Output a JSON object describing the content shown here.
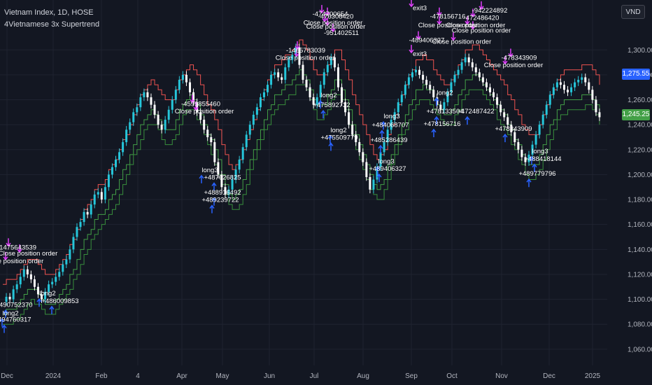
{
  "header": {
    "title": "Vietnam Index, 1D, HOSE",
    "indicator": "4Vietnamese 3x Supertrend",
    "currency": "VND"
  },
  "price_badges": {
    "upper": "1,275.55",
    "lower": "1,245.25"
  },
  "colors": {
    "background": "#131722",
    "up_candle": "#26c6da",
    "down_candle": "#ffffff",
    "supertrend_fast": "#ef5350",
    "supertrend_mid": "#43a047",
    "supertrend_slow": "#388e3c",
    "long_signal": "#2962ff",
    "exit_signal": "#e040fb",
    "grid": "#1f2330",
    "axis_text": "#b2b5be"
  },
  "chart_data": {
    "type": "line",
    "title": "Vietnam Index, 1D, HOSE",
    "xlabel": "",
    "ylabel": "",
    "ylim": [
      1047,
      1340
    ],
    "y_ticks": [
      "1,060.00",
      "1,080.00",
      "1,100.00",
      "1,120.00",
      "1,140.00",
      "1,160.00",
      "1,180.00",
      "1,200.00",
      "1,220.00",
      "1,240.00",
      "1,260.00",
      "1,280.00",
      "1,300.00"
    ],
    "x_ticks": [
      "Dec",
      "2024",
      "Feb",
      "4",
      "Apr",
      "May",
      "Jun",
      "Jul",
      "Aug",
      "Sep",
      "Oct",
      "Nov",
      "Dec",
      "2025"
    ],
    "series": [
      {
        "name": "Vietnam Index",
        "values": [
          1098,
          1102,
          1100,
          1108,
          1112,
          1118,
          1124,
          1120,
          1116,
          1110,
          1104,
          1100,
          1106,
          1112,
          1114,
          1118,
          1122,
          1128,
          1132,
          1140,
          1150,
          1158,
          1162,
          1170,
          1168,
          1176,
          1184,
          1186,
          1180,
          1190,
          1200,
          1206,
          1212,
          1218,
          1226,
          1236,
          1242,
          1250,
          1254,
          1262,
          1266,
          1262,
          1256,
          1248,
          1240,
          1236,
          1244,
          1252,
          1260,
          1268,
          1276,
          1280,
          1274,
          1266,
          1258,
          1250,
          1244,
          1236,
          1230,
          1226,
          1210,
          1200,
          1190,
          1184,
          1188,
          1196,
          1204,
          1212,
          1222,
          1232,
          1240,
          1248,
          1254,
          1262,
          1266,
          1272,
          1280,
          1282,
          1278,
          1276,
          1286,
          1292,
          1296,
          1302,
          1288,
          1276,
          1270,
          1262,
          1256,
          1262,
          1272,
          1282,
          1288,
          1294,
          1286,
          1270,
          1258,
          1250,
          1240,
          1232,
          1226,
          1218,
          1210,
          1198,
          1188,
          1196,
          1206,
          1218,
          1226,
          1236,
          1244,
          1250,
          1258,
          1264,
          1272,
          1278,
          1282,
          1284,
          1280,
          1276,
          1272,
          1268,
          1262,
          1256,
          1252,
          1258,
          1266,
          1274,
          1280,
          1284,
          1290,
          1294,
          1290,
          1286,
          1282,
          1278,
          1274,
          1270,
          1266,
          1262,
          1256,
          1250,
          1246,
          1240,
          1234,
          1226,
          1220,
          1214,
          1210,
          1216,
          1224,
          1232,
          1240,
          1248,
          1256,
          1264,
          1270,
          1274,
          1272,
          1268,
          1266,
          1270,
          1274,
          1276,
          1278,
          1274,
          1268,
          1260,
          1250,
          1246
        ]
      },
      {
        "name": "Supertrend fast",
        "values": []
      },
      {
        "name": "Supertrend mid",
        "values": []
      },
      {
        "name": "Supertrend slow",
        "values": []
      }
    ],
    "annotations": [
      {
        "text": "-1475643539",
        "x": 24,
        "y": 1140
      },
      {
        "text": "Close position order",
        "x": 40,
        "y": 1135
      },
      {
        "text": "Close position order",
        "x": 20,
        "y": 1129
      },
      {
        "text": "long2",
        "x": 68,
        "y": 1103
      },
      {
        "text": "+486009853",
        "x": 86,
        "y": 1097
      },
      {
        "text": "+490752370",
        "x": 20,
        "y": 1094
      },
      {
        "text": "long2",
        "x": 15,
        "y": 1087
      },
      {
        "text": "+494760317",
        "x": 18,
        "y": 1082
      },
      {
        "text": "-4599855460",
        "x": 287,
        "y": 1255
      },
      {
        "text": "Close position order",
        "x": 292,
        "y": 1249
      },
      {
        "text": "long3",
        "x": 300,
        "y": 1202
      },
      {
        "text": "+487626825",
        "x": 318,
        "y": 1196
      },
      {
        "text": "+488916492",
        "x": 318,
        "y": 1184
      },
      {
        "text": "+489239722",
        "x": 315,
        "y": 1178
      },
      {
        "text": "-1465783039",
        "x": 437,
        "y": 1298
      },
      {
        "text": "Close position order",
        "x": 436,
        "y": 1292
      },
      {
        "text": "-474700654",
        "x": 472,
        "y": 1327
      },
      {
        "text": "-476308420",
        "x": 480,
        "y": 1325
      },
      {
        "text": "Close position order",
        "x": 476,
        "y": 1320
      },
      {
        "text": "Close position order",
        "x": 480,
        "y": 1317
      },
      {
        "text": "-951402511",
        "x": 488,
        "y": 1312
      },
      {
        "text": "long2",
        "x": 470,
        "y": 1262
      },
      {
        "text": "+475892732",
        "x": 474,
        "y": 1254
      },
      {
        "text": "long2",
        "x": 484,
        "y": 1234
      },
      {
        "text": "+475509779",
        "x": 485,
        "y": 1228
      },
      {
        "text": "long3",
        "x": 560,
        "y": 1245
      },
      {
        "text": "+484068707",
        "x": 558,
        "y": 1238
      },
      {
        "text": "+485286439",
        "x": 556,
        "y": 1226
      },
      {
        "text": "long3",
        "x": 552,
        "y": 1209
      },
      {
        "text": "+489406327",
        "x": 554,
        "y": 1203
      },
      {
        "text": "exit3",
        "x": 600,
        "y": 1332
      },
      {
        "text": "-478156716",
        "x": 640,
        "y": 1325
      },
      {
        "text": "-942224892",
        "x": 700,
        "y": 1330
      },
      {
        "text": "Close position order",
        "x": 640,
        "y": 1318
      },
      {
        "text": "-472486420",
        "x": 688,
        "y": 1324
      },
      {
        "text": "Close position order",
        "x": 680,
        "y": 1318
      },
      {
        "text": "Close position order",
        "x": 688,
        "y": 1314
      },
      {
        "text": "-489406327",
        "x": 610,
        "y": 1306
      },
      {
        "text": "Close position order",
        "x": 660,
        "y": 1305
      },
      {
        "text": "exit3",
        "x": 600,
        "y": 1295
      },
      {
        "text": "-478343909",
        "x": 742,
        "y": 1292
      },
      {
        "text": "Close position order",
        "x": 734,
        "y": 1286
      },
      {
        "text": "long2",
        "x": 636,
        "y": 1264
      },
      {
        "text": "+478133504",
        "x": 636,
        "y": 1249
      },
      {
        "text": "+472487422",
        "x": 680,
        "y": 1249
      },
      {
        "text": "+478156716",
        "x": 632,
        "y": 1239
      },
      {
        "text": "+478343909",
        "x": 734,
        "y": 1235
      },
      {
        "text": "long3",
        "x": 772,
        "y": 1217
      },
      {
        "text": "+488418144",
        "x": 776,
        "y": 1211
      },
      {
        "text": "+489779796",
        "x": 768,
        "y": 1199
      }
    ]
  }
}
